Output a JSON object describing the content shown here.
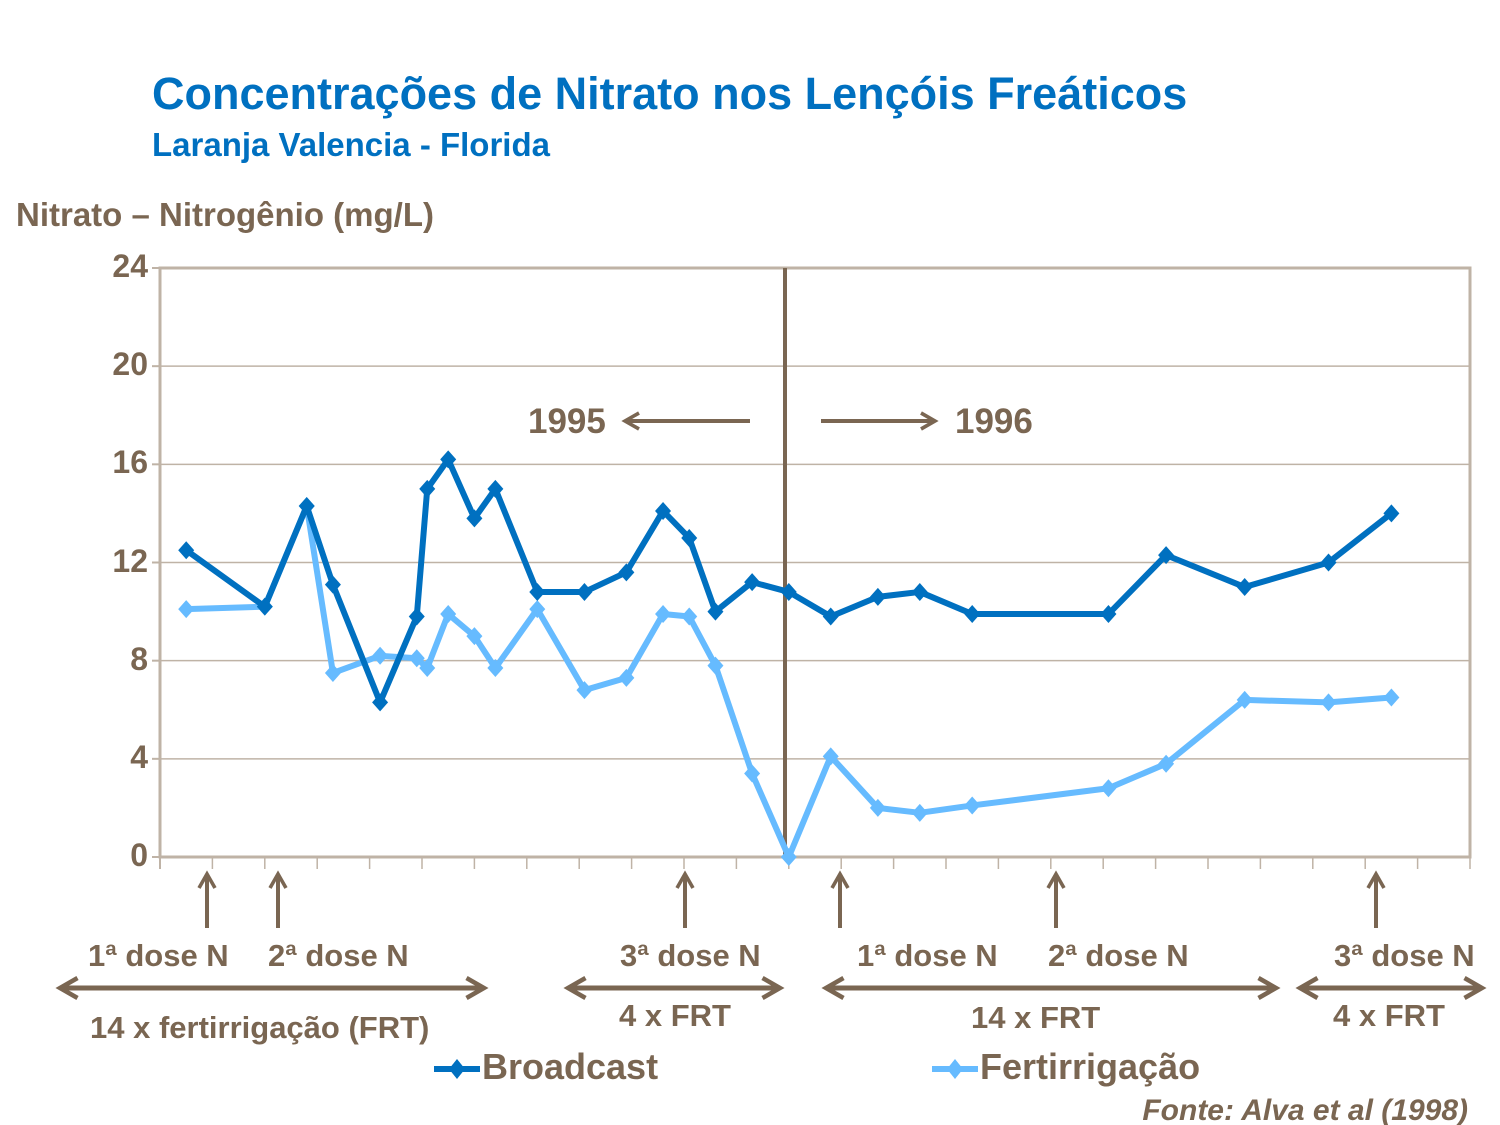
{
  "chart_data": {
    "type": "line",
    "title": "Concentrações de Nitrato nos Lençóis Freáticos",
    "subtitle": "Laranja Valencia - Florida",
    "ylabel": "Nitrato – Nitrogênio (mg/L)",
    "xlabel": "",
    "ylim": [
      0,
      24
    ],
    "yticks": [
      "0",
      "4",
      "8",
      "12",
      "16",
      "20",
      "24"
    ],
    "xlim": [
      0,
      25
    ],
    "x_tick_count": 25,
    "grid": "horizontal",
    "legend_position": "bottom",
    "x": [
      0.5,
      2.0,
      2.8,
      3.3,
      4.2,
      4.9,
      5.1,
      5.5,
      6.0,
      6.4,
      7.2,
      8.1,
      8.9,
      9.6,
      10.1,
      10.6,
      11.3,
      12.0,
      12.8,
      13.7,
      14.5,
      15.5,
      18.1,
      19.2,
      20.7,
      22.3,
      23.5
    ],
    "series": [
      {
        "name": "Broadcast",
        "color": "#0070C0",
        "values": [
          12.5,
          10.2,
          14.3,
          11.1,
          6.3,
          9.8,
          15.0,
          16.2,
          13.8,
          15.0,
          10.8,
          10.8,
          11.6,
          14.1,
          13.0,
          10.0,
          11.2,
          10.8,
          9.8,
          10.6,
          10.8,
          9.9,
          9.9,
          12.3,
          11.0,
          12.0,
          14.0
        ]
      },
      {
        "name": "Fertirrigação",
        "color": "#66BBFF",
        "values": [
          10.1,
          10.2,
          14.3,
          7.5,
          8.2,
          8.1,
          7.7,
          9.9,
          9.0,
          7.7,
          10.1,
          6.8,
          7.3,
          9.9,
          9.8,
          7.8,
          3.4,
          0.0,
          4.1,
          2.0,
          1.8,
          2.1,
          2.8,
          3.8,
          6.4,
          6.3,
          6.5
        ]
      }
    ],
    "annotations": {
      "year_left": "1995",
      "year_right": "1996",
      "doses": [
        "1ª dose N",
        "2ª dose N",
        "3ª dose N",
        "1ª dose N",
        "2ª dose N",
        "3ª dose N"
      ],
      "periods": [
        "14 x fertirrigação (FRT)",
        "4 x FRT",
        "14 x FRT",
        "4 x FRT"
      ]
    },
    "source": "Fonte: Alva et al (1998)"
  }
}
